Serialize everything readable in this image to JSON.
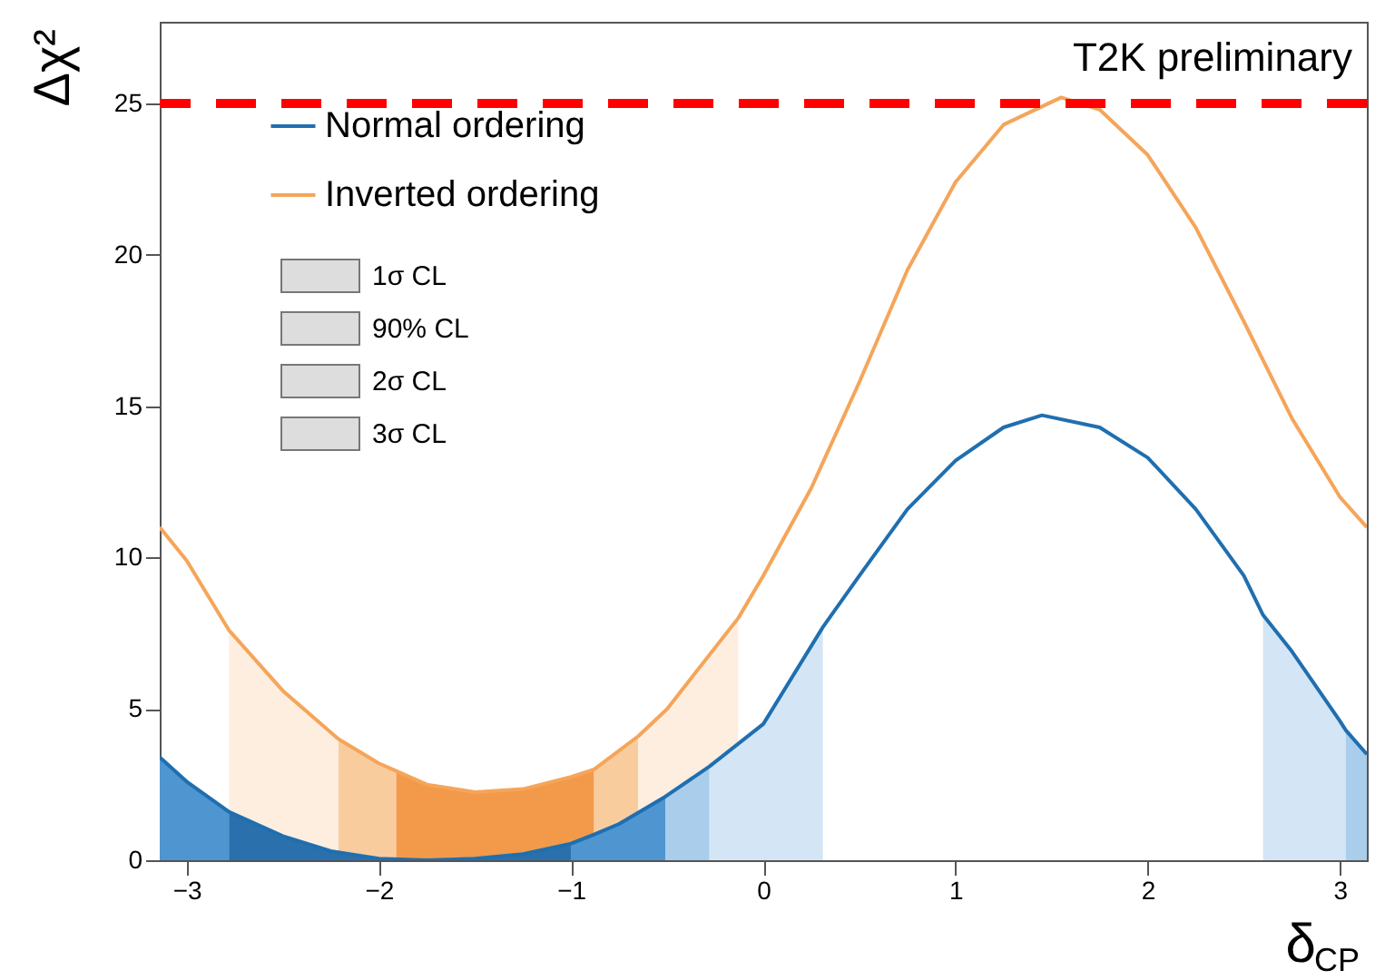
{
  "chart_data": {
    "type": "line",
    "xlabel": "δ$_{CP}$",
    "ylabel": "Δχ²",
    "xlim": [
      -3.14,
      3.14
    ],
    "ylim": [
      0,
      27.7
    ],
    "xticks": [
      -3,
      -2,
      -1,
      0,
      1,
      2,
      3
    ],
    "yticks": [
      0,
      5,
      10,
      15,
      20,
      25
    ],
    "grid": false,
    "legend": "top left",
    "annotations": [
      "T2K preliminary",
      "1σ CL",
      "90% CL",
      "2σ CL",
      "3σ CL"
    ],
    "ref_lines": [
      {
        "axis": "y",
        "value": 25,
        "color": "#ff0000",
        "line_style": "dashed"
      }
    ],
    "series": [
      {
        "type": "area",
        "color": "#fdeee0",
        "x": [
          -2.78,
          -2.5,
          -2.21
        ],
        "values": [
          7.6,
          5.6,
          4.0
        ]
      },
      {
        "type": "area",
        "color": "#f9cc9e",
        "x": [
          -2.21,
          -2.0,
          -1.91
        ],
        "values": [
          4.0,
          3.2,
          2.95
        ]
      },
      {
        "type": "area",
        "color": "#f29a4a",
        "x": [
          -1.91,
          -1.75,
          -1.5,
          -1.25,
          -1.0,
          -0.88
        ],
        "values": [
          2.95,
          2.5,
          2.25,
          2.35,
          2.75,
          3.0
        ]
      },
      {
        "type": "area",
        "color": "#f9cc9e",
        "x": [
          -0.88,
          -0.65
        ],
        "values": [
          3.0,
          4.1
        ]
      },
      {
        "type": "area",
        "color": "#fdeee0",
        "x": [
          -0.65,
          -0.5,
          -0.13
        ],
        "values": [
          4.1,
          5.0,
          8.0
        ]
      },
      {
        "type": "area",
        "color": "#4f95d0",
        "x": [
          -3.14,
          -3.0,
          -2.78
        ],
        "values": [
          3.4,
          2.6,
          1.6
        ]
      },
      {
        "type": "area",
        "color": "#2a70ad",
        "x": [
          -2.78,
          -2.5,
          -2.25,
          -2.0,
          -1.75,
          -1.5,
          -1.25,
          -1.0
        ],
        "values": [
          1.6,
          0.8,
          0.3,
          0.05,
          0,
          0.05,
          0.2,
          0.55
        ]
      },
      {
        "type": "area",
        "color": "#4f95d0",
        "x": [
          -1.0,
          -0.88,
          -0.75,
          -0.51
        ],
        "values": [
          0.55,
          0.85,
          1.2,
          2.1
        ]
      },
      {
        "type": "area",
        "color": "#a9cdea",
        "x": [
          -0.51,
          -0.28
        ],
        "values": [
          2.1,
          3.1
        ]
      },
      {
        "type": "area",
        "color": "#d4e6f5",
        "x": [
          -0.28,
          0,
          0.31
        ],
        "values": [
          3.1,
          4.5,
          7.7
        ]
      },
      {
        "type": "area",
        "color": "#d4e6f5",
        "x": [
          2.6,
          2.75,
          3.0,
          3.03
        ],
        "values": [
          8.1,
          6.9,
          4.6,
          4.3
        ]
      },
      {
        "type": "area",
        "color": "#a9cdea",
        "x": [
          3.03,
          3.14
        ],
        "values": [
          4.3,
          3.5
        ]
      },
      {
        "name": "Normal ordering",
        "color": "#1f6fb0",
        "x": [
          -3.14,
          -3.0,
          -2.78,
          -2.5,
          -2.25,
          -2.0,
          -1.75,
          -1.5,
          -1.25,
          -1.0,
          -0.88,
          -0.75,
          -0.51,
          -0.28,
          0,
          0.31,
          0.5,
          0.75,
          1.0,
          1.25,
          1.45,
          1.75,
          2.0,
          2.25,
          2.5,
          2.6,
          2.75,
          3.0,
          3.03,
          3.14
        ],
        "values": [
          3.4,
          2.6,
          1.6,
          0.8,
          0.3,
          0.05,
          0,
          0.05,
          0.2,
          0.55,
          0.85,
          1.2,
          2.1,
          3.1,
          4.5,
          7.7,
          9.4,
          11.6,
          13.2,
          14.3,
          14.7,
          14.3,
          13.3,
          11.6,
          9.4,
          8.1,
          6.9,
          4.6,
          4.3,
          3.5
        ]
      },
      {
        "name": "Inverted ordering",
        "color": "#f5a55a",
        "x": [
          -3.14,
          -3.0,
          -2.78,
          -2.5,
          -2.21,
          -2.0,
          -1.91,
          -1.75,
          -1.5,
          -1.25,
          -1.0,
          -0.88,
          -0.65,
          -0.5,
          -0.13,
          0,
          0.25,
          0.5,
          0.75,
          1.0,
          1.25,
          1.55,
          1.75,
          2.0,
          2.25,
          2.5,
          2.75,
          3.0,
          3.14
        ],
        "values": [
          11.0,
          9.9,
          7.6,
          5.6,
          4.0,
          3.2,
          2.95,
          2.5,
          2.25,
          2.35,
          2.75,
          3.0,
          4.1,
          5.0,
          8.0,
          9.4,
          12.3,
          15.8,
          19.5,
          22.4,
          24.3,
          25.2,
          24.8,
          23.3,
          20.9,
          17.8,
          14.6,
          12.0,
          11.0
        ]
      }
    ]
  }
}
